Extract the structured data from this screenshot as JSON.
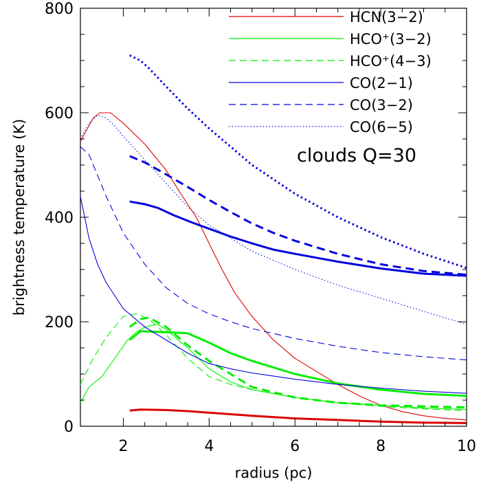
{
  "chart_data": {
    "type": "line",
    "title": "",
    "annotation": "clouds Q=30",
    "xlabel": "radius (pc)",
    "ylabel": "brightness temperature (K)",
    "xlim": [
      1,
      10
    ],
    "ylim": [
      0,
      800
    ],
    "xticks": [
      2,
      4,
      6,
      8,
      10
    ],
    "yticks": [
      0,
      200,
      400,
      600,
      800
    ],
    "grid": false,
    "legend_position": "top-right",
    "legend": [
      {
        "label": "HCN(3−2)",
        "color": "#dd0000",
        "dash": "solid"
      },
      {
        "label": "HCO⁺(3−2)",
        "color": "#00ee00",
        "dash": "solid"
      },
      {
        "label": "HCO⁺(4−3)",
        "color": "#00ee00",
        "dash": "dashed"
      },
      {
        "label": "CO(2−1)",
        "color": "#0000dd",
        "dash": "solid"
      },
      {
        "label": "CO(3−2)",
        "color": "#0000dd",
        "dash": "dashed"
      },
      {
        "label": "CO(6−5)",
        "color": "#0000dd",
        "dash": "dotted"
      }
    ],
    "series": [
      {
        "line": "HCN(3−2)",
        "variant": "thin",
        "color": "#dd0000",
        "dash": "solid",
        "width": "thin",
        "x": [
          1.0,
          1.1,
          1.2,
          1.3,
          1.45,
          1.7,
          2.0,
          2.5,
          3.0,
          3.3,
          3.7,
          4.0,
          4.3,
          4.6,
          5.0,
          5.5,
          6.0,
          6.5,
          7.0,
          7.5,
          8.0,
          8.5,
          9.0,
          9.5,
          10.0
        ],
        "y": [
          545,
          560,
          575,
          590,
          600,
          600,
          580,
          540,
          490,
          450,
          400,
          350,
          300,
          255,
          210,
          165,
          130,
          105,
          80,
          58,
          40,
          28,
          20,
          15,
          12
        ]
      },
      {
        "line": "HCN(3−2)",
        "variant": "thick",
        "color": "#dd0000",
        "dash": "solid",
        "width": "thick",
        "x": [
          2.15,
          2.4,
          3.0,
          3.5,
          4.0,
          5.0,
          6.0,
          7.0,
          8.0,
          9.0,
          10.0
        ],
        "y": [
          30,
          32,
          31,
          29,
          26,
          20,
          15,
          12,
          9,
          7,
          6
        ]
      },
      {
        "line": "HCO⁺(3−2)",
        "variant": "thin",
        "color": "#00ee00",
        "dash": "solid",
        "width": "thin",
        "x": [
          1.0,
          1.2,
          1.5,
          1.8,
          2.1,
          2.3,
          2.5,
          2.8,
          3.0,
          3.5,
          4.0,
          4.5,
          5.0,
          6.0,
          7.0,
          8.0,
          9.0,
          10.0
        ],
        "y": [
          45,
          75,
          95,
          130,
          165,
          180,
          190,
          195,
          185,
          150,
          110,
          85,
          70,
          55,
          45,
          40,
          35,
          32
        ]
      },
      {
        "line": "HCO⁺(3−2)",
        "variant": "thick",
        "color": "#00ee00",
        "dash": "solid",
        "width": "thick",
        "x": [
          2.15,
          2.4,
          3.0,
          3.5,
          4.0,
          4.5,
          5.0,
          6.0,
          7.0,
          8.0,
          9.0,
          10.0
        ],
        "y": [
          165,
          182,
          180,
          178,
          160,
          140,
          125,
          100,
          82,
          70,
          62,
          58
        ]
      },
      {
        "line": "HCO⁺(4−3)",
        "variant": "thin",
        "color": "#00ee00",
        "dash": "dashed",
        "width": "thin",
        "x": [
          1.0,
          1.3,
          1.6,
          2.0,
          2.3,
          2.6,
          3.0,
          3.5,
          4.0,
          4.5,
          5.0,
          6.0,
          7.0,
          8.0,
          9.0,
          10.0
        ],
        "y": [
          80,
          130,
          170,
          210,
          215,
          205,
          175,
          130,
          95,
          80,
          70,
          55,
          45,
          38,
          33,
          30
        ]
      },
      {
        "line": "HCO⁺(4−3)",
        "variant": "thick",
        "color": "#00ee00",
        "dash": "dashed",
        "width": "thick",
        "x": [
          2.15,
          2.4,
          2.6,
          3.0,
          3.5,
          4.0,
          4.5,
          5.0,
          6.0,
          7.0,
          8.0,
          9.0,
          10.0
        ],
        "y": [
          190,
          205,
          208,
          190,
          155,
          125,
          100,
          75,
          55,
          45,
          40,
          38,
          36
        ]
      },
      {
        "line": "CO(2−1)",
        "variant": "thin",
        "color": "#0000dd",
        "dash": "solid",
        "width": "thin",
        "x": [
          1.0,
          1.2,
          1.4,
          1.6,
          2.0,
          2.5,
          3.0,
          3.5,
          4.0,
          4.5,
          5.0,
          6.0,
          7.0,
          8.0,
          9.0,
          10.0
        ],
        "y": [
          440,
          360,
          310,
          275,
          225,
          190,
          165,
          140,
          120,
          110,
          102,
          90,
          80,
          73,
          67,
          63
        ]
      },
      {
        "line": "CO(2−1)",
        "variant": "thick",
        "color": "#0000dd",
        "dash": "solid",
        "width": "thick",
        "x": [
          2.15,
          2.5,
          2.8,
          3.2,
          3.6,
          4.0,
          4.5,
          5.0,
          5.5,
          6.0,
          7.0,
          8.0,
          9.0,
          10.0
        ],
        "y": [
          430,
          425,
          418,
          403,
          390,
          378,
          363,
          350,
          338,
          330,
          315,
          302,
          292,
          288
        ]
      },
      {
        "line": "CO(3−2)",
        "variant": "thin",
        "color": "#0000dd",
        "dash": "dashed",
        "width": "thin",
        "x": [
          1.0,
          1.2,
          1.4,
          1.6,
          2.0,
          2.5,
          3.0,
          3.5,
          4.0,
          4.5,
          5.0,
          6.0,
          7.0,
          8.0,
          9.0,
          10.0
        ],
        "y": [
          535,
          520,
          480,
          440,
          370,
          310,
          265,
          235,
          215,
          200,
          187,
          168,
          153,
          141,
          133,
          127
        ]
      },
      {
        "line": "CO(3−2)",
        "variant": "thick",
        "color": "#0000dd",
        "dash": "dashed",
        "width": "thick",
        "x": [
          2.15,
          2.5,
          3.0,
          3.5,
          4.0,
          4.5,
          5.0,
          5.5,
          6.0,
          7.0,
          8.0,
          9.0,
          10.0
        ],
        "y": [
          517,
          505,
          482,
          458,
          433,
          410,
          388,
          370,
          355,
          330,
          310,
          297,
          290
        ]
      },
      {
        "line": "CO(6−5)",
        "variant": "thin",
        "color": "#0000dd",
        "dash": "dotted",
        "width": "thin",
        "x": [
          1.0,
          1.2,
          1.4,
          1.6,
          1.8,
          2.0,
          2.5,
          3.0,
          3.5,
          4.0,
          4.5,
          5.0,
          6.0,
          7.0,
          8.0,
          9.0,
          10.0
        ],
        "y": [
          550,
          580,
          595,
          590,
          575,
          555,
          510,
          465,
          420,
          385,
          360,
          335,
          300,
          270,
          245,
          220,
          195
        ]
      },
      {
        "line": "CO(6−5)",
        "variant": "thick",
        "color": "#0000dd",
        "dash": "dotted",
        "width": "thick",
        "x": [
          2.15,
          2.4,
          2.6,
          3.0,
          3.5,
          4.0,
          4.5,
          5.0,
          6.0,
          7.0,
          8.0,
          9.0,
          10.0
        ],
        "y": [
          710,
          700,
          685,
          650,
          608,
          570,
          535,
          500,
          445,
          400,
          362,
          330,
          303
        ]
      }
    ]
  }
}
